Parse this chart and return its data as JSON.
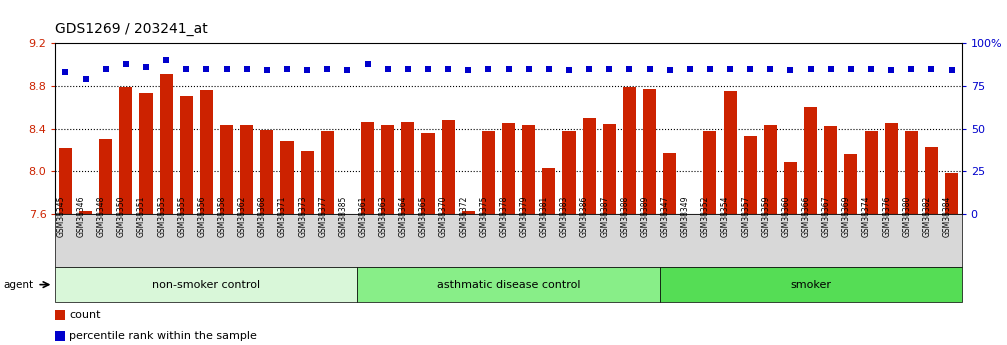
{
  "title": "GDS1269 / 203241_at",
  "samples": [
    "GSM38345",
    "GSM38346",
    "GSM38348",
    "GSM38350",
    "GSM38351",
    "GSM38353",
    "GSM38355",
    "GSM38356",
    "GSM38358",
    "GSM38362",
    "GSM38368",
    "GSM38371",
    "GSM38373",
    "GSM38377",
    "GSM38385",
    "GSM38361",
    "GSM38363",
    "GSM38364",
    "GSM38365",
    "GSM38370",
    "GSM38372",
    "GSM38375",
    "GSM38378",
    "GSM38379",
    "GSM38381",
    "GSM38383",
    "GSM38386",
    "GSM38387",
    "GSM38388",
    "GSM38389",
    "GSM38347",
    "GSM38349",
    "GSM38352",
    "GSM38354",
    "GSM38357",
    "GSM38359",
    "GSM38360",
    "GSM38366",
    "GSM38367",
    "GSM38369",
    "GSM38374",
    "GSM38376",
    "GSM38380",
    "GSM38382",
    "GSM38384"
  ],
  "bar_values": [
    8.22,
    7.63,
    8.3,
    8.79,
    8.73,
    8.91,
    8.7,
    8.76,
    8.43,
    8.43,
    8.39,
    8.28,
    8.19,
    8.38,
    7.6,
    8.46,
    8.43,
    8.46,
    8.36,
    8.48,
    7.63,
    8.38,
    8.45,
    8.43,
    8.03,
    8.38,
    8.5,
    8.44,
    8.79,
    8.77,
    8.17,
    7.59,
    8.38,
    8.75,
    8.33,
    8.43,
    8.09,
    8.6,
    8.42,
    8.16,
    8.38,
    8.45,
    8.38,
    8.23,
    7.98
  ],
  "percentile_values": [
    83,
    79,
    85,
    88,
    86,
    90,
    85,
    85,
    85,
    85,
    84,
    85,
    84,
    85,
    84,
    88,
    85,
    85,
    85,
    85,
    84,
    85,
    85,
    85,
    85,
    84,
    85,
    85,
    85,
    85,
    84,
    85,
    85,
    85,
    85,
    85,
    84,
    85,
    85,
    85,
    85,
    84,
    85,
    85,
    84
  ],
  "bar_color": "#cc2200",
  "dot_color": "#0000cc",
  "ylim_left": [
    7.6,
    9.2
  ],
  "ylim_right": [
    0,
    100
  ],
  "yticks_left": [
    7.6,
    8.0,
    8.4,
    8.8,
    9.2
  ],
  "yticks_right": [
    0,
    25,
    50,
    75,
    100
  ],
  "ytick_labels_right": [
    "0",
    "25",
    "50",
    "75",
    "100%"
  ],
  "groups": [
    {
      "label": "non-smoker control",
      "start": 0,
      "end": 14,
      "color": "#d9f7d9"
    },
    {
      "label": "asthmatic disease control",
      "start": 15,
      "end": 29,
      "color": "#88ee88"
    },
    {
      "label": "smoker",
      "start": 30,
      "end": 44,
      "color": "#55dd55"
    }
  ],
  "agent_label": "agent",
  "legend_items": [
    {
      "color": "#cc2200",
      "label": "count"
    },
    {
      "color": "#0000cc",
      "label": "percentile rank within the sample"
    }
  ],
  "title_fontsize": 10,
  "bar_width": 0.65,
  "bg_color": "#ffffff",
  "grid_color": "#000000",
  "ticklabel_bg": "#d8d8d8"
}
